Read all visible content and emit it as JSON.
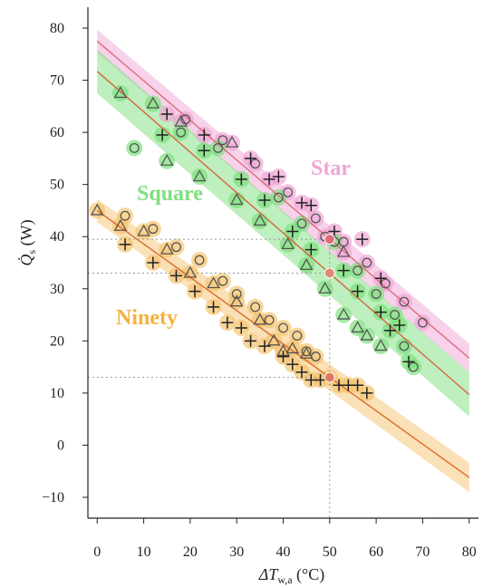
{
  "chart_data": {
    "type": "scatter",
    "xlabel": "ΔT",
    "xlabel_sub": "w,a",
    "xlabel_unit": " (°C)",
    "ylabel": "Q̇",
    "ylabel_sub": "s",
    "ylabel_unit": " (W)",
    "xlim": [
      -2,
      82
    ],
    "ylim": [
      -14,
      84
    ],
    "x_ticks": [
      0,
      10,
      20,
      30,
      40,
      50,
      60,
      70,
      80
    ],
    "y_ticks": [
      -10,
      0,
      10,
      20,
      30,
      40,
      50,
      60,
      70,
      80
    ],
    "grid": false,
    "reference_lines": {
      "x": 50,
      "y": [
        39.5,
        33,
        13
      ]
    },
    "series": [
      {
        "name": "Star",
        "color": "#f0a6d6",
        "line_color": "#dd6b7b",
        "fit": {
          "slope": -0.76,
          "intercept": 77.5,
          "x_range": [
            0,
            80
          ]
        },
        "triangles": [
          [
            18,
            62
          ],
          [
            29,
            58
          ],
          [
            53,
            37
          ]
        ],
        "circles": [
          [
            19,
            62.5
          ],
          [
            27,
            58.5
          ],
          [
            34,
            54
          ],
          [
            41,
            48.5
          ],
          [
            47,
            43.5
          ],
          [
            49,
            40
          ],
          [
            53,
            39
          ],
          [
            58,
            35
          ],
          [
            62,
            31
          ],
          [
            66,
            27.5
          ],
          [
            70,
            23.5
          ]
        ],
        "crosses": [
          [
            15,
            63.5
          ],
          [
            23,
            59.5
          ],
          [
            33,
            55
          ],
          [
            37,
            51
          ],
          [
            39,
            51.5
          ],
          [
            44,
            46.5
          ],
          [
            46,
            46
          ],
          [
            51,
            41
          ],
          [
            57,
            39.5
          ],
          [
            61,
            32
          ]
        ]
      },
      {
        "name": "Square",
        "color": "#7ee07e",
        "line_color": "#d4673f",
        "fit": {
          "slope": -0.775,
          "intercept": 71.7,
          "x_range": [
            0,
            80
          ]
        },
        "triangles": [
          [
            5,
            67.5
          ],
          [
            12,
            65.5
          ],
          [
            15,
            54.5
          ],
          [
            22,
            51.5
          ],
          [
            30,
            47
          ],
          [
            35,
            43
          ],
          [
            41,
            38.5
          ],
          [
            45,
            34.5
          ],
          [
            49,
            30
          ],
          [
            53,
            25
          ],
          [
            56,
            22.5
          ],
          [
            58,
            21
          ],
          [
            61,
            19
          ]
        ],
        "circles": [
          [
            8,
            57
          ],
          [
            18,
            60
          ],
          [
            26,
            57
          ],
          [
            39,
            47.5
          ],
          [
            44,
            42.5
          ],
          [
            51,
            39
          ],
          [
            56,
            33.5
          ],
          [
            60,
            29
          ],
          [
            64,
            25
          ],
          [
            66,
            19
          ],
          [
            68,
            15
          ]
        ],
        "crosses": [
          [
            14,
            59.5
          ],
          [
            23,
            56.5
          ],
          [
            31,
            51
          ],
          [
            36,
            47
          ],
          [
            42,
            41
          ],
          [
            46,
            37.5
          ],
          [
            53,
            33.5
          ],
          [
            56,
            29.5
          ],
          [
            61,
            25.5
          ],
          [
            63,
            22
          ],
          [
            65,
            23
          ],
          [
            67,
            16
          ]
        ]
      },
      {
        "name": "Ninety",
        "color": "#f5c46f",
        "line_color": "#dd6b2a",
        "fit": {
          "slope": -0.64,
          "intercept": 45,
          "x_range": [
            0,
            80
          ]
        },
        "triangles": [
          [
            0,
            45
          ],
          [
            5,
            42
          ],
          [
            10,
            41
          ],
          [
            15,
            37.5
          ],
          [
            20,
            33
          ],
          [
            25,
            31
          ],
          [
            30,
            27.5
          ],
          [
            35,
            24
          ],
          [
            38,
            20
          ],
          [
            40,
            18
          ],
          [
            42,
            18.5
          ],
          [
            45,
            17.5
          ]
        ],
        "circles": [
          [
            6,
            44
          ],
          [
            12,
            41.5
          ],
          [
            17,
            38
          ],
          [
            22,
            35.5
          ],
          [
            27,
            31.5
          ],
          [
            30,
            29
          ],
          [
            34,
            26.5
          ],
          [
            37,
            24
          ],
          [
            40,
            22.5
          ],
          [
            43,
            21
          ],
          [
            45,
            18
          ],
          [
            47,
            17
          ],
          [
            50,
            13
          ]
        ],
        "crosses": [
          [
            6,
            38.5
          ],
          [
            12,
            35
          ],
          [
            17,
            32.5
          ],
          [
            21,
            29.5
          ],
          [
            25,
            26.5
          ],
          [
            28,
            23.5
          ],
          [
            31,
            22.5
          ],
          [
            33,
            20
          ],
          [
            36,
            19
          ],
          [
            40,
            17
          ],
          [
            42,
            15.5
          ],
          [
            44,
            14
          ],
          [
            46,
            12.5
          ],
          [
            48,
            12.5
          ],
          [
            52,
            11.5
          ],
          [
            54,
            11.5
          ],
          [
            56,
            11.5
          ],
          [
            58,
            10
          ]
        ]
      }
    ]
  }
}
